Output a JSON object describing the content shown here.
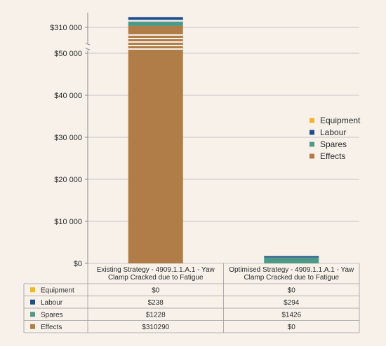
{
  "chart_data": {
    "type": "bar",
    "stacked": true,
    "categories": [
      [
        "Existing Strategy - 4909.1.1.A.1 - Yaw",
        "Clamp Cracked due to Fatigue"
      ],
      [
        "Optimised Strategy - 4909.1.1.A.1 - Yaw",
        "Clamp Cracked due to Fatigue"
      ]
    ],
    "series": [
      {
        "name": "Equipment",
        "values": [
          0,
          0
        ],
        "labels": [
          "$0",
          "$0"
        ],
        "color": "#f2b233"
      },
      {
        "name": "Labour",
        "values": [
          238,
          294
        ],
        "labels": [
          "$238",
          "$294"
        ],
        "color": "#1f4e8c"
      },
      {
        "name": "Spares",
        "values": [
          1228,
          1426
        ],
        "labels": [
          "$1228",
          "$1426"
        ],
        "color": "#4e9a86"
      },
      {
        "name": "Effects",
        "values": [
          310290,
          0
        ],
        "labels": [
          "$310290",
          "$0"
        ],
        "color": "#b07d48"
      }
    ],
    "y_ticks": [
      {
        "value": 0,
        "label": "$0"
      },
      {
        "value": 10000,
        "label": "$10 000"
      },
      {
        "value": 20000,
        "label": "$20 000"
      },
      {
        "value": 30000,
        "label": "$30 000"
      },
      {
        "value": 40000,
        "label": "$40 000"
      },
      {
        "value": 50000,
        "label": "$50 000"
      },
      {
        "value": 310000,
        "label": "$310 000"
      }
    ],
    "y_axis_break": [
      50000,
      310000
    ],
    "grid": true,
    "legend_position": "right",
    "data_table": true
  }
}
